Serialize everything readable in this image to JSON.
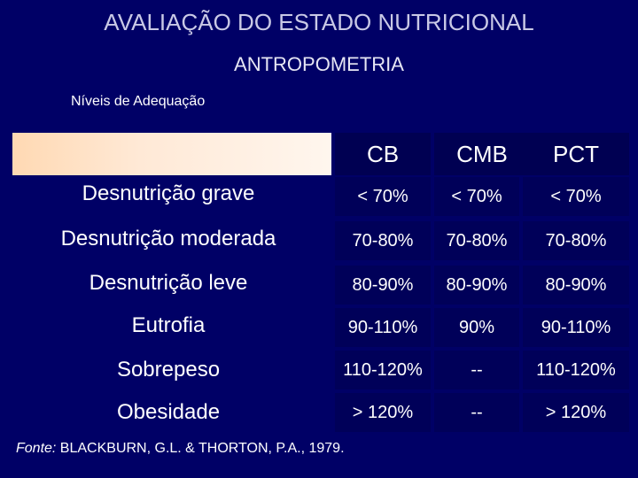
{
  "title": "AVALIAÇÃO DO ESTADO NUTRICIONAL",
  "subtitle": "ANTROPOMETRIA",
  "levels_label": "Níveis de Adequação",
  "table": {
    "headers": [
      "CB",
      "CMB",
      "PCT"
    ],
    "rows": [
      {
        "label": "Desnutrição grave",
        "cb": "< 70%",
        "cmb": "< 70%",
        "pct": "< 70%"
      },
      {
        "label": "Desnutrição moderada",
        "cb": "70-80%",
        "cmb": "70-80%",
        "pct": "70-80%"
      },
      {
        "label": "Desnutrição leve",
        "cb": "80-90%",
        "cmb": "80-90%",
        "pct": "80-90%"
      },
      {
        "label": "Eutrofia",
        "cb": "90-110%",
        "cmb": "90%",
        "pct": "90-110%"
      },
      {
        "label": "Sobrepeso",
        "cb": "110-120%",
        "cmb": "--",
        "pct": "110-120%"
      },
      {
        "label": "Obesidade",
        "cb": "> 120%",
        "cmb": "--",
        "pct": "> 120%"
      }
    ]
  },
  "footnote": {
    "prefix": "Fonte:",
    "text": " BLACKBURN, G.L. & THORTON, P.A., 1979."
  },
  "colors": {
    "background": "#000066",
    "header_band": "#ffe9d6"
  }
}
